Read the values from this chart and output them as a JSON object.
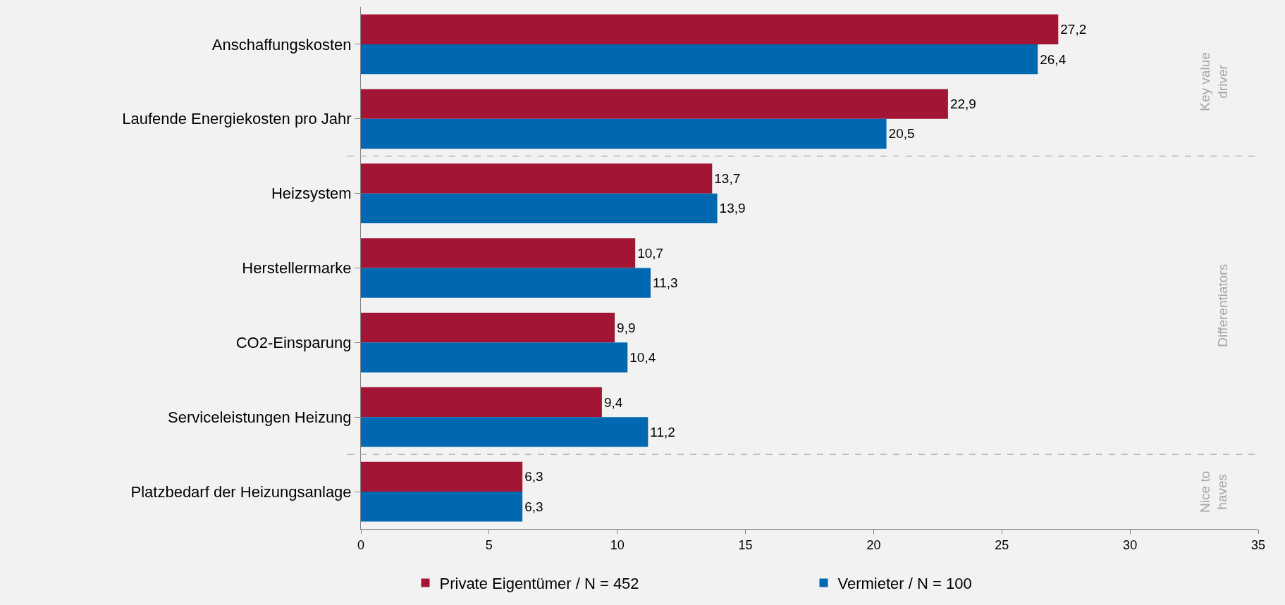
{
  "chart_data": {
    "type": "bar",
    "orientation": "horizontal",
    "categories": [
      "Anschaffungskosten",
      "Laufende Energiekosten pro Jahr",
      "Heizsystem",
      "Herstellermarke",
      "CO2-Einsparung",
      "Serviceleistungen Heizung",
      "Platzbedarf der Heizungsanlage"
    ],
    "series": [
      {
        "name": "Private Eigentümer / N = 452",
        "color": "#a31535",
        "values": [
          27.2,
          22.9,
          13.7,
          10.7,
          9.9,
          9.4,
          6.3
        ],
        "value_labels": [
          "27,2",
          "22,9",
          "13,7",
          "10,7",
          "9,9",
          "9,4",
          "6,3"
        ]
      },
      {
        "name": "Vermieter / N = 100",
        "color": "#0067b1",
        "values": [
          26.4,
          20.5,
          13.9,
          11.3,
          10.4,
          11.2,
          6.3
        ],
        "value_labels": [
          "26,4",
          "20,5",
          "13,9",
          "11,3",
          "10,4",
          "11,2",
          "6,3"
        ]
      }
    ],
    "xlim": [
      0,
      35
    ],
    "xticks": [
      0,
      5,
      10,
      15,
      20,
      25,
      30,
      35
    ],
    "annotations": [
      "Key value driver",
      "Differentiators",
      "Nice to haves"
    ],
    "grid": false,
    "legend": "bottom"
  }
}
